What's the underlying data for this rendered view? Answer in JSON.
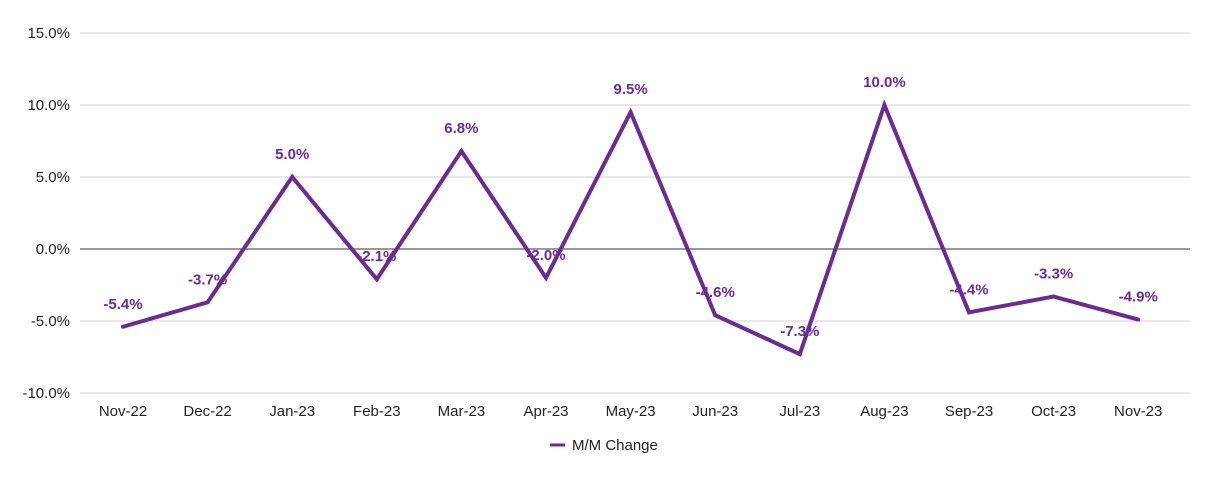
{
  "chart_data": {
    "type": "line",
    "categories": [
      "Nov-22",
      "Dec-22",
      "Jan-23",
      "Feb-23",
      "Mar-23",
      "Apr-23",
      "May-23",
      "Jun-23",
      "Jul-23",
      "Aug-23",
      "Sep-23",
      "Oct-23",
      "Nov-23"
    ],
    "series": [
      {
        "name": "M/M Change",
        "values": [
          -5.4,
          -3.7,
          5.0,
          -2.1,
          6.8,
          -2.0,
          9.5,
          -4.6,
          -7.3,
          10.0,
          -4.4,
          -3.3,
          -4.9
        ],
        "labels": [
          "-5.4%",
          "-3.7%",
          "5.0%",
          "-2.1%",
          "6.8%",
          "-2.0%",
          "9.5%",
          "-4.6%",
          "-7.3%",
          "10.0%",
          "-4.4%",
          "-3.3%",
          "-4.9%"
        ],
        "color": "#6B2C91"
      }
    ],
    "ylim": [
      -10,
      15
    ],
    "yticks": [
      15,
      10,
      5,
      0,
      -5,
      -10
    ],
    "ytick_labels": [
      "15.0%",
      "10.0%",
      "5.0%",
      "0.0%",
      "-5.0%",
      "-10.0%"
    ],
    "grid": true,
    "legend_position": "bottom",
    "title": "",
    "xlabel": "",
    "ylabel": ""
  }
}
